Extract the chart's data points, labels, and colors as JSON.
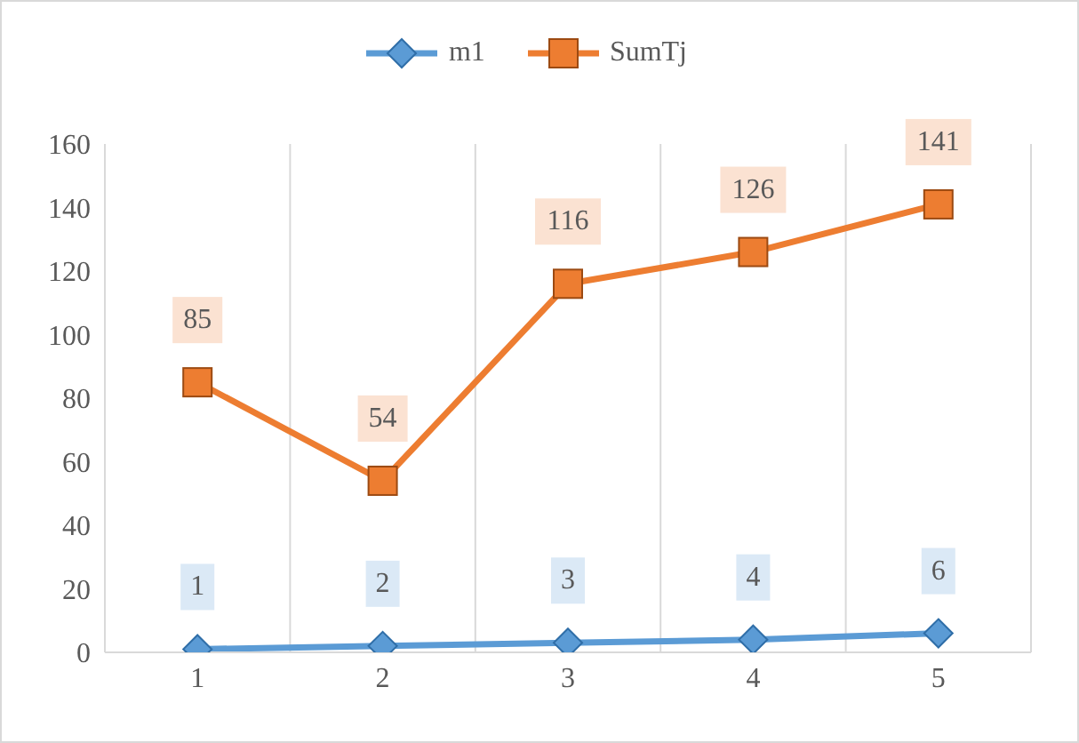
{
  "chart_data": {
    "type": "line",
    "categories": [
      "1",
      "2",
      "3",
      "4",
      "5"
    ],
    "series": [
      {
        "name": "m1",
        "color": "#5b9bd5",
        "marker": "diamond",
        "values": [
          1,
          2,
          3,
          4,
          6
        ]
      },
      {
        "name": "SumTj",
        "color": "#ed7d31",
        "marker": "square",
        "values": [
          85,
          54,
          116,
          126,
          141
        ]
      }
    ],
    "ylim": [
      0,
      160
    ],
    "yticks": [
      0,
      20,
      40,
      60,
      80,
      100,
      120,
      140,
      160
    ],
    "grid": "x",
    "legend": "top",
    "data_labels": true
  }
}
